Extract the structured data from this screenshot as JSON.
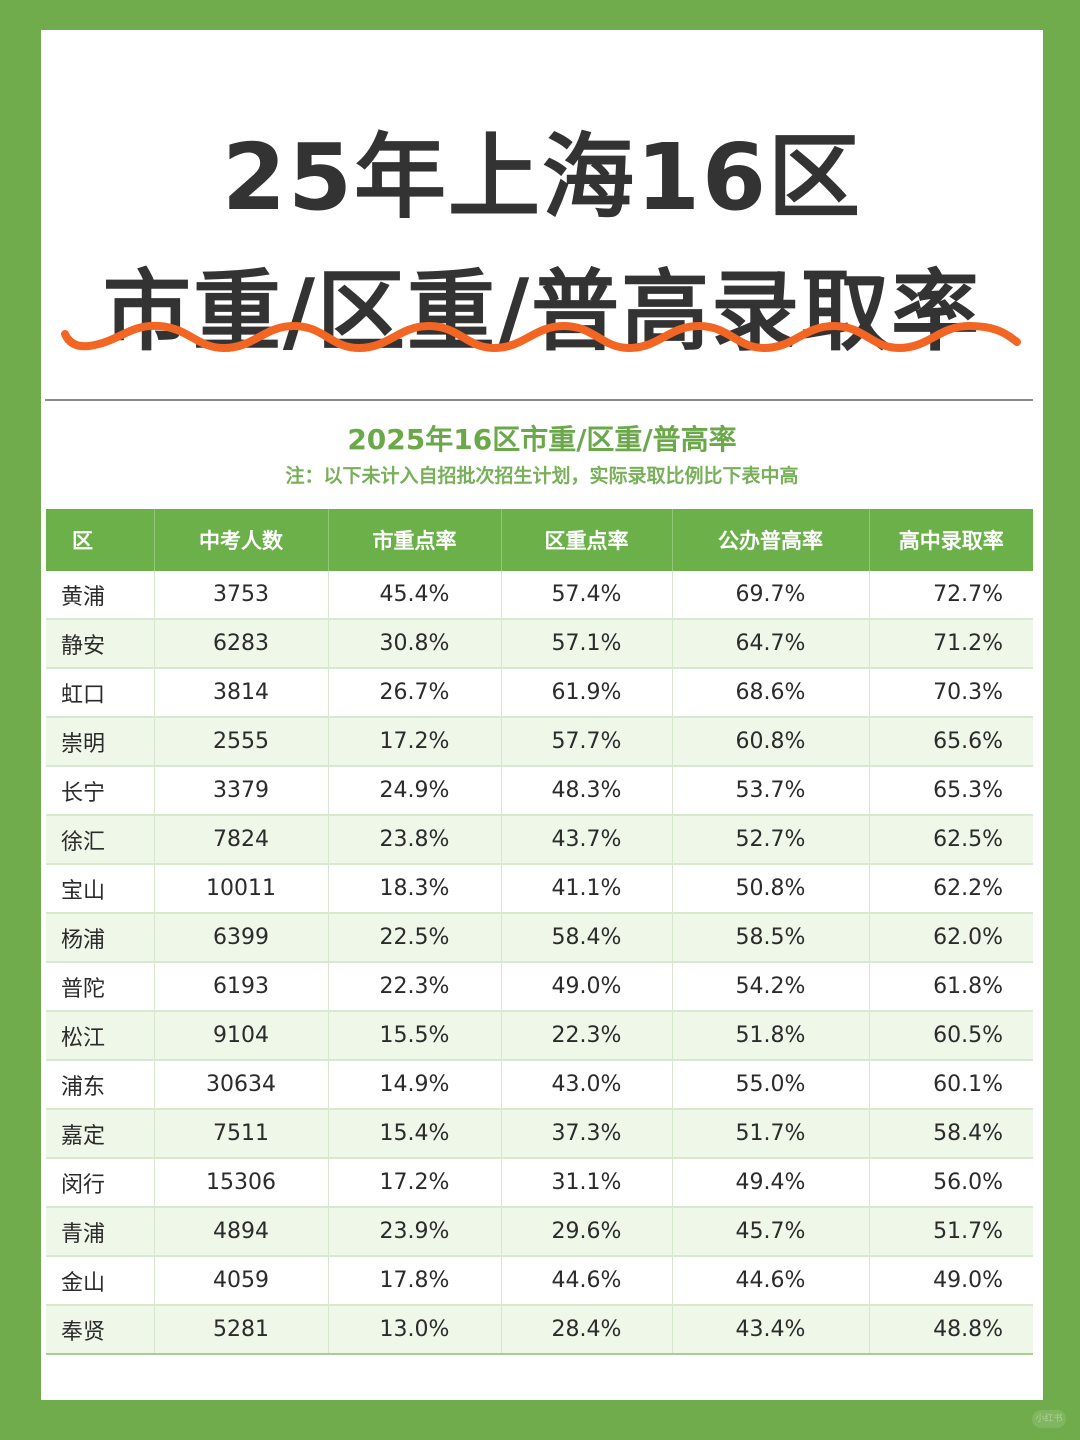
{
  "header": {
    "title_line1": "25年上海16区",
    "title_line2": "市重/区重/普高录取率"
  },
  "colors": {
    "border_green": "#70ac4b",
    "header_green": "#6cb04a",
    "alt_row": "#eef7e8",
    "wave_orange": "#f26522",
    "title_text": "#333333"
  },
  "table_section": {
    "subtitle": "2025年16区市重/区重/普高率",
    "note": "注：以下未计入自招批次招生计划，实际录取比例比下表中高"
  },
  "table": {
    "columns": [
      "区",
      "中考人数",
      "市重点率",
      "区重点率",
      "公办普高率",
      "高中录取率"
    ],
    "rows": [
      [
        "黄浦",
        "3753",
        "45.4%",
        "57.4%",
        "69.7%",
        "72.7%"
      ],
      [
        "静安",
        "6283",
        "30.8%",
        "57.1%",
        "64.7%",
        "71.2%"
      ],
      [
        "虹口",
        "3814",
        "26.7%",
        "61.9%",
        "68.6%",
        "70.3%"
      ],
      [
        "崇明",
        "2555",
        "17.2%",
        "57.7%",
        "60.8%",
        "65.6%"
      ],
      [
        "长宁",
        "3379",
        "24.9%",
        "48.3%",
        "53.7%",
        "65.3%"
      ],
      [
        "徐汇",
        "7824",
        "23.8%",
        "43.7%",
        "52.7%",
        "62.5%"
      ],
      [
        "宝山",
        "10011",
        "18.3%",
        "41.1%",
        "50.8%",
        "62.2%"
      ],
      [
        "杨浦",
        "6399",
        "22.5%",
        "58.4%",
        "58.5%",
        "62.0%"
      ],
      [
        "普陀",
        "6193",
        "22.3%",
        "49.0%",
        "54.2%",
        "61.8%"
      ],
      [
        "松江",
        "9104",
        "15.5%",
        "22.3%",
        "51.8%",
        "60.5%"
      ],
      [
        "浦东",
        "30634",
        "14.9%",
        "43.0%",
        "55.0%",
        "60.1%"
      ],
      [
        "嘉定",
        "7511",
        "15.4%",
        "37.3%",
        "51.7%",
        "58.4%"
      ],
      [
        "闵行",
        "15306",
        "17.2%",
        "31.1%",
        "49.4%",
        "56.0%"
      ],
      [
        "青浦",
        "4894",
        "23.9%",
        "29.6%",
        "45.7%",
        "51.7%"
      ],
      [
        "金山",
        "4059",
        "17.8%",
        "44.6%",
        "44.6%",
        "49.0%"
      ],
      [
        "奉贤",
        "5281",
        "13.0%",
        "28.4%",
        "43.4%",
        "48.8%"
      ]
    ]
  },
  "footer": {
    "badge": "小红书"
  }
}
